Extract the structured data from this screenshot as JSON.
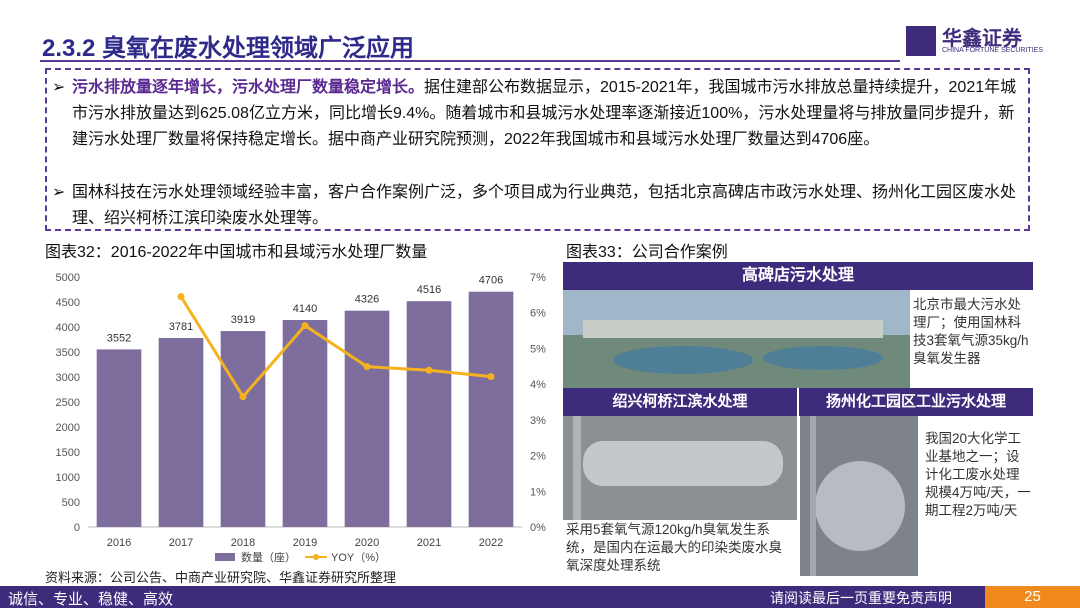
{
  "header": {
    "title": "2.3.2 臭氧在废水处理领域广泛应用",
    "logo_cn": "华鑫证券",
    "logo_en": "CHINA FORTUNE SECURITIES"
  },
  "bullets": [
    {
      "bold": "污水排放量逐年增长，污水处理厂数量稳定增长。",
      "text": "据住建部公布数据显示，2015-2021年，我国城市污水排放总量持续提升，2021年城市污水排放量达到625.08亿立方米，同比增长9.4%。随着城市和县城污水处理率逐渐接近100%，污水处理量将与排放量同步提升，新建污水处理厂数量将保持稳定增长。据中商产业研究院预测，2022年我国城市和县域污水处理厂数量达到4706座。"
    },
    {
      "text": "国林科技在污水处理领域经验丰富，客户合作案例广泛，多个项目成为行业典范，包括北京高碑店市政污水处理、扬州化工园区废水处理、绍兴柯桥江滨印染废水处理等。"
    }
  ],
  "chart_data": {
    "type": "bar_line",
    "title": "图表32：2016-2022年中国城市和县域污水处理厂数量",
    "categories": [
      "2016",
      "2017",
      "2018",
      "2019",
      "2020",
      "2021",
      "2022"
    ],
    "series": [
      {
        "name": "数量（座）",
        "color": "#7d6e9d",
        "type": "bar",
        "values": [
          3552,
          3781,
          3919,
          4140,
          4326,
          4516,
          4706
        ]
      },
      {
        "name": "YOY（%）",
        "color": "#f5b21c",
        "type": "line",
        "axis": "y2",
        "values": [
          null,
          6.45,
          3.65,
          5.64,
          4.49,
          4.39,
          4.21
        ]
      }
    ],
    "ylim": [
      0,
      5000
    ],
    "yticks": [
      0,
      500,
      1000,
      1500,
      2000,
      2500,
      3000,
      3500,
      4000,
      4500,
      5000
    ],
    "y2lim": [
      0,
      7
    ],
    "y2ticks": [
      {
        "value": 0,
        "label": "0%"
      },
      {
        "value": 1,
        "label": "1%"
      },
      {
        "value": 2,
        "label": "2%"
      },
      {
        "value": 3,
        "label": "3%"
      },
      {
        "value": 4,
        "label": "4%"
      },
      {
        "value": 5,
        "label": "5%"
      },
      {
        "value": 6,
        "label": "6%"
      },
      {
        "value": 7,
        "label": "7%"
      }
    ],
    "grid": false,
    "legend": "bottom"
  },
  "source": "资料来源：公司公告、中商产业研究院、华鑫证券研究所整理",
  "case_figure": {
    "title": "图表33：公司合作案例",
    "panels": [
      {
        "heading": "高碑店污水处理",
        "desc": "北京市最大污水处理厂；使用国林科技3套氧气源35kg/h臭氧发生器"
      },
      {
        "heading": "绍兴柯桥江滨水处理",
        "desc": "采用5套氧气源120kg/h臭氧发生系统，是国内在运最大的印染类废水臭氧深度处理系统"
      },
      {
        "heading": "扬州化工园区工业污水处理",
        "desc": "我国20大化学工业基地之一；设计化工废水处理规模4万吨/天，一期工程2万吨/天"
      }
    ]
  },
  "footer": {
    "motto": "诚信、专业、稳健、高效",
    "disclaimer": "请阅读最后一页重要免责声明",
    "page": "25"
  }
}
